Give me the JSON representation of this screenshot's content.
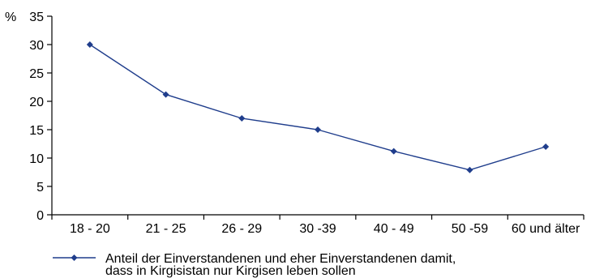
{
  "chart_data": {
    "type": "line",
    "title": "",
    "xlabel": "",
    "ylabel": "",
    "y_unit": "%",
    "ylim": [
      0,
      35
    ],
    "yticks": [
      0,
      5,
      10,
      15,
      20,
      25,
      30,
      35
    ],
    "grid": false,
    "legend_position": "bottom",
    "categories": [
      "18 - 20",
      "21 - 25",
      "26 - 29",
      "30 -39",
      "40 - 49",
      "50 -59",
      "60 und älter"
    ],
    "series": [
      {
        "name_lines": [
          "Anteil der Einverstandenen  und eher Einverstandenen damit,",
          "dass in Kirgisistan nur Kirgisen leben sollen"
        ],
        "values": [
          30,
          21.2,
          17,
          15,
          11.2,
          7.9,
          12
        ],
        "color": "#1f3d8c",
        "marker": "diamond"
      }
    ]
  }
}
